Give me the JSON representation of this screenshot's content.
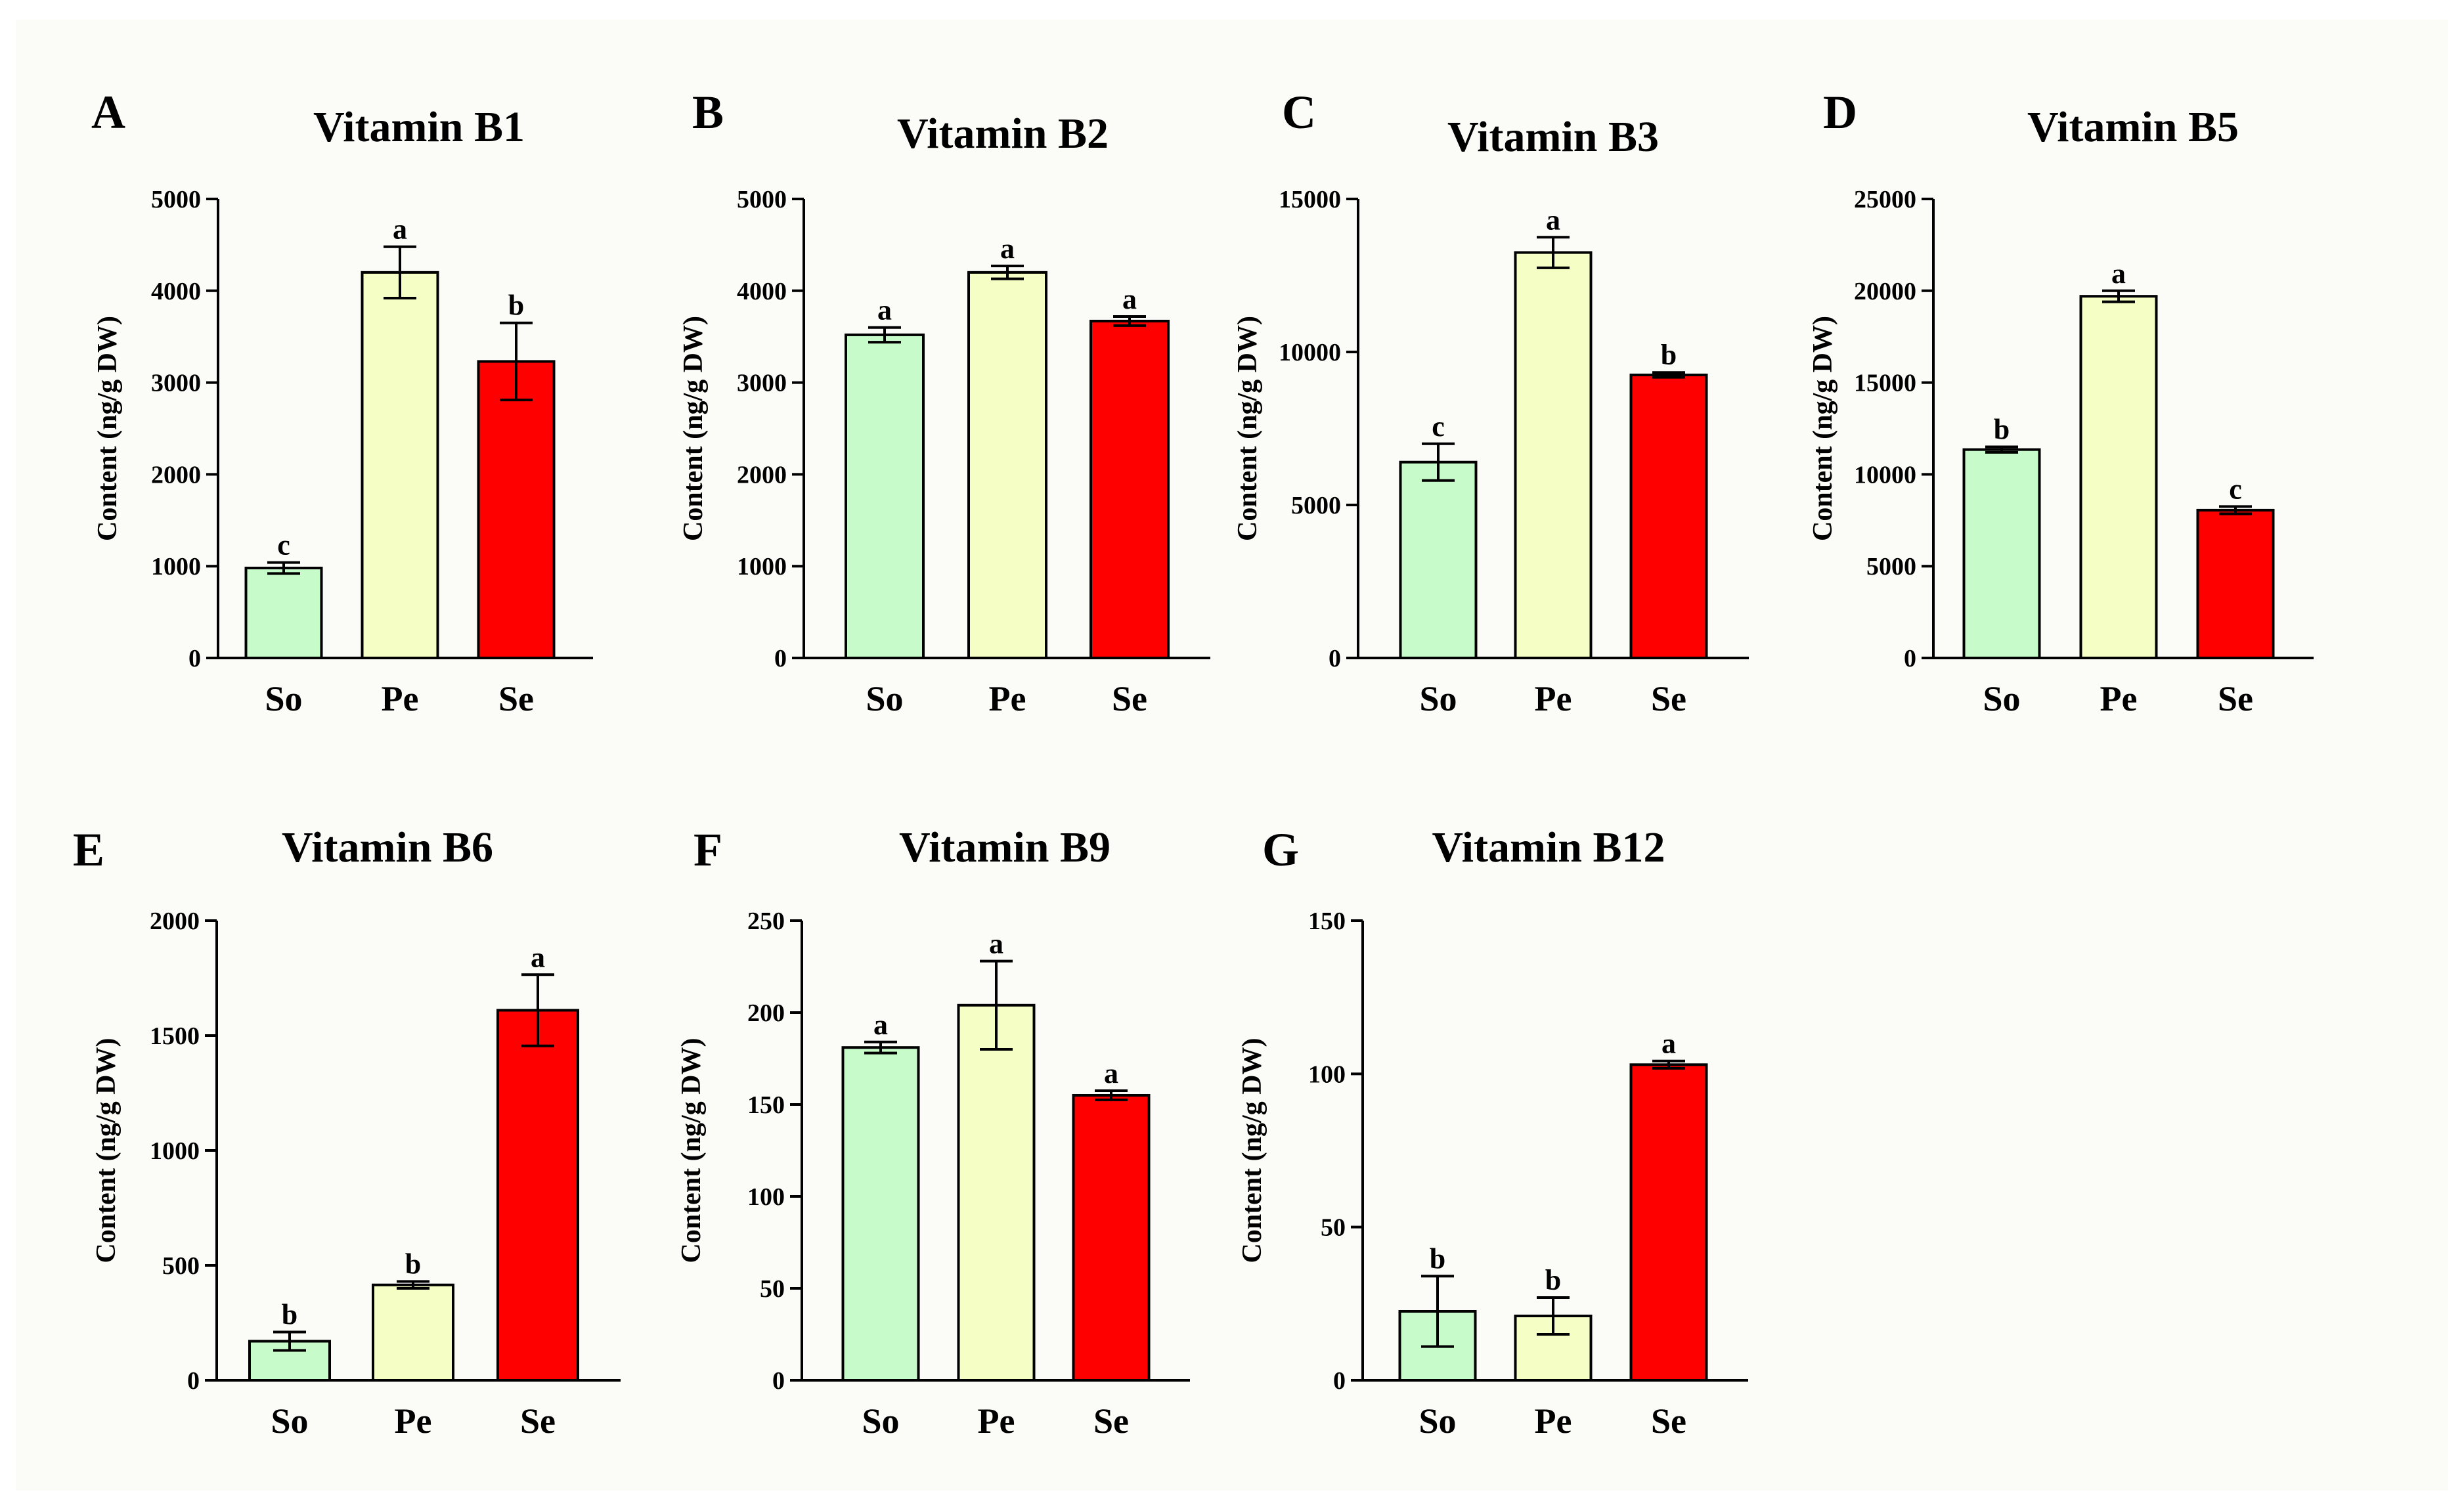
{
  "colors": {
    "So": "#c7fbc9",
    "Pe": "#f5ffc5",
    "Se": "#ff0000"
  },
  "chart_data": [
    {
      "type": "bar",
      "panel": "A",
      "title": "Vitamin B1",
      "ylabel": "Content (ng/g DW)",
      "categories": [
        "So",
        "Pe",
        "Se"
      ],
      "values": [
        980,
        4200,
        3230
      ],
      "errors": [
        60,
        280,
        420
      ],
      "labels": [
        "c",
        "a",
        "b"
      ],
      "ylim": [
        0,
        5000
      ],
      "yticks": [
        0,
        1000,
        2000,
        3000,
        4000,
        5000
      ],
      "grid": false
    },
    {
      "type": "bar",
      "panel": "B",
      "title": "Vitamin B2",
      "ylabel": "Content (ng/g DW)",
      "categories": [
        "So",
        "Pe",
        "Se"
      ],
      "values": [
        3520,
        4200,
        3670
      ],
      "errors": [
        80,
        70,
        50
      ],
      "labels": [
        "a",
        "a",
        "a"
      ],
      "ylim": [
        0,
        5000
      ],
      "yticks": [
        0,
        1000,
        2000,
        3000,
        4000,
        5000
      ],
      "grid": false
    },
    {
      "type": "bar",
      "panel": "C",
      "title": "Vitamin B3",
      "ylabel": "Content (ng/g DW)",
      "categories": [
        "So",
        "Pe",
        "Se"
      ],
      "values": [
        6400,
        13250,
        9250
      ],
      "errors": [
        600,
        500,
        80
      ],
      "labels": [
        "c",
        "a",
        "b"
      ],
      "ylim": [
        0,
        15000
      ],
      "yticks": [
        0,
        5000,
        10000,
        15000
      ],
      "grid": false
    },
    {
      "type": "bar",
      "panel": "D",
      "title": "Vitamin B5",
      "ylabel": "Content (ng/g DW)",
      "categories": [
        "So",
        "Pe",
        "Se"
      ],
      "values": [
        11350,
        19700,
        8050
      ],
      "errors": [
        150,
        300,
        200
      ],
      "labels": [
        "b",
        "a",
        "c"
      ],
      "ylim": [
        0,
        25000
      ],
      "yticks": [
        0,
        5000,
        10000,
        15000,
        20000,
        25000
      ],
      "grid": false
    },
    {
      "type": "bar",
      "panel": "E",
      "title": "Vitamin B6",
      "ylabel": "Content (ng/g DW)",
      "categories": [
        "So",
        "Pe",
        "Se"
      ],
      "values": [
        170,
        415,
        1610
      ],
      "errors": [
        40,
        15,
        155
      ],
      "labels": [
        "b",
        "b",
        "a"
      ],
      "ylim": [
        0,
        2000
      ],
      "yticks": [
        0,
        500,
        1000,
        1500,
        2000
      ],
      "grid": false
    },
    {
      "type": "bar",
      "panel": "F",
      "title": "Vitamin B9",
      "ylabel": "Content (ng/g DW)",
      "categories": [
        "So",
        "Pe",
        "Se"
      ],
      "values": [
        181,
        204,
        155
      ],
      "errors": [
        3,
        24,
        2.5
      ],
      "labels": [
        "a",
        "a",
        "a"
      ],
      "ylim": [
        0,
        250
      ],
      "yticks": [
        0,
        50,
        100,
        150,
        200,
        250
      ],
      "grid": false
    },
    {
      "type": "bar",
      "panel": "G",
      "title": "Vitamin B12",
      "ylabel": "Content (ng/g DW)",
      "categories": [
        "So",
        "Pe",
        "Se"
      ],
      "values": [
        22.5,
        21,
        103
      ],
      "errors": [
        11.5,
        6,
        1.2
      ],
      "labels": [
        "b",
        "b",
        "a"
      ],
      "ylim": [
        0,
        150
      ],
      "yticks": [
        0,
        50,
        100,
        150
      ],
      "grid": false
    }
  ]
}
